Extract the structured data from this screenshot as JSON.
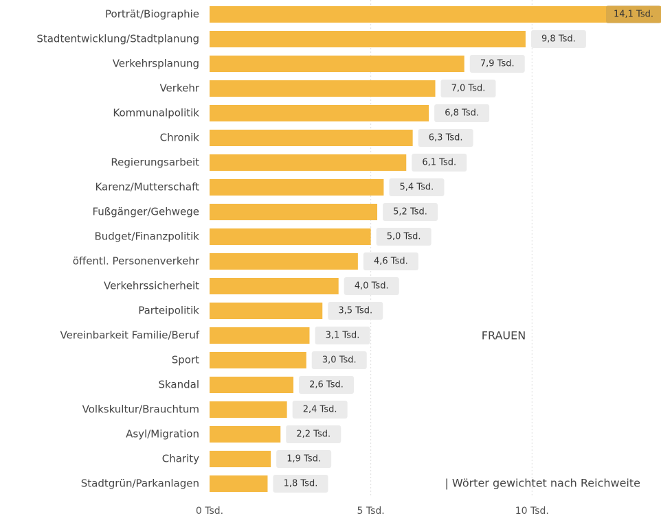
{
  "chart_data": {
    "type": "barh",
    "categories": [
      "Porträt/Biographie",
      "Stadtentwicklung/Stadtplanung",
      "Verkehrsplanung",
      "Verkehr",
      "Kommunalpolitik",
      "Chronik",
      "Regierungsarbeit",
      "Karenz/Mutterschaft",
      "Fußgänger/Gehwege",
      "Budget/Finanzpolitik",
      "öffentl. Personenverkehr",
      "Verkehrssicherheit",
      "Parteipolitik",
      "Vereinbarkeit Familie/Beruf",
      "Sport",
      "Skandal",
      "Volkskultur/Brauchtum",
      "Asyl/Migration",
      "Charity",
      "Stadtgrün/Parkanlagen"
    ],
    "values": [
      14.1,
      9.8,
      7.9,
      7.0,
      6.8,
      6.3,
      6.1,
      5.4,
      5.2,
      5.0,
      4.6,
      4.0,
      3.5,
      3.1,
      3.0,
      2.6,
      2.4,
      2.2,
      1.9,
      1.8
    ],
    "value_labels": [
      "14,1 Tsd.",
      "9,8 Tsd.",
      "7,9 Tsd.",
      "7,0 Tsd.",
      "6,8 Tsd.",
      "6,3 Tsd.",
      "6,1 Tsd.",
      "5,4 Tsd.",
      "5,2 Tsd.",
      "5,0 Tsd.",
      "4,6 Tsd.",
      "4,0 Tsd.",
      "3,5 Tsd.",
      "3,1 Tsd.",
      "3,0 Tsd.",
      "2,6 Tsd.",
      "2,4 Tsd.",
      "2,2 Tsd.",
      "1,9 Tsd.",
      "1,8 Tsd."
    ],
    "color": "#f5b942",
    "xlim": [
      0,
      14
    ],
    "xticks": [
      {
        "value": 0,
        "label": "0 Tsd."
      },
      {
        "value": 5,
        "label": "5 Tsd."
      },
      {
        "value": 10,
        "label": "10 Tsd."
      }
    ],
    "grid": true,
    "annotations": [
      "FRAUEN",
      "| Wörter gewichtet nach Reichweite"
    ]
  }
}
